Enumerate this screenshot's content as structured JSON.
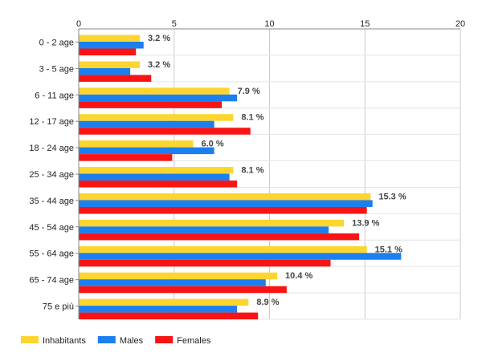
{
  "chart_data": {
    "type": "bar",
    "orientation": "horizontal",
    "title": "",
    "xlabel": "",
    "ylabel": "",
    "xlim": [
      0,
      20
    ],
    "xticks": [
      0,
      5,
      10,
      15,
      20
    ],
    "grid": true,
    "legend_position": "bottom-left",
    "categories": [
      "0 - 2 age",
      "3 - 5 age",
      "6 - 11 age",
      "12 - 17 age",
      "18 - 24 age",
      "25 - 34 age",
      "35 - 44 age",
      "45 - 54 age",
      "55 - 64 age",
      "65 - 74 age",
      "75 e più"
    ],
    "series": [
      {
        "name": "Inhabitants",
        "color": "#fcd62e",
        "values": [
          3.2,
          3.2,
          7.9,
          8.1,
          6.0,
          8.1,
          15.3,
          13.9,
          15.1,
          10.4,
          8.9
        ],
        "labels": [
          "3.2 %",
          "3.2 %",
          "7.9 %",
          "8.1 %",
          "6.0 %",
          "8.1 %",
          "15.3 %",
          "13.9 %",
          "15.1 %",
          "10.4 %",
          "8.9 %"
        ]
      },
      {
        "name": "Males",
        "color": "#1c7ff0",
        "values": [
          3.4,
          2.7,
          8.3,
          7.1,
          7.1,
          7.9,
          15.4,
          13.1,
          16.9,
          9.8,
          8.3
        ]
      },
      {
        "name": "Females",
        "color": "#f81414",
        "values": [
          3.0,
          3.8,
          7.5,
          9.0,
          4.9,
          8.3,
          15.1,
          14.7,
          13.2,
          10.9,
          9.4
        ]
      }
    ]
  }
}
